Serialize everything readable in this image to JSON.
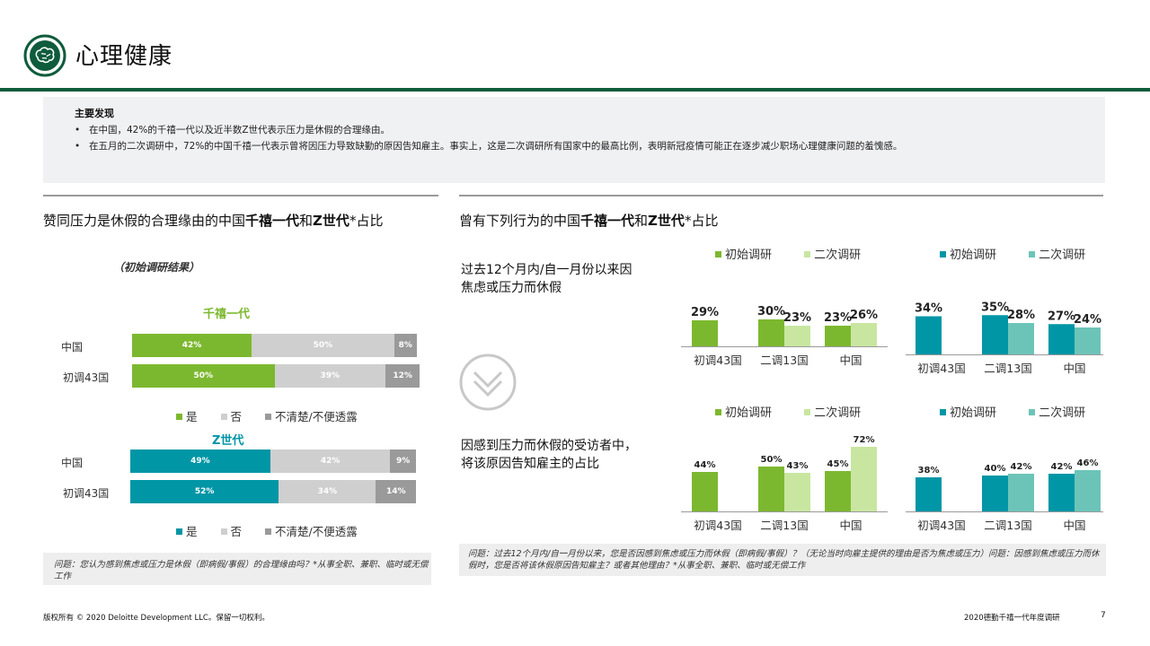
{
  "page": {
    "title": "心理健康",
    "footer_left": "版权所有 © 2020 Deloitte Development LLC。保留一切权利。",
    "footer_right": "2020德勤千禧一代年度调研",
    "page_number": "7"
  },
  "colors": {
    "green": "#7cb82f",
    "light_green": "#c8e6a0",
    "teal": "#0096a6",
    "light_teal": "#6cc4b8",
    "gray": "#cfcfcf",
    "dark_gray": "#9a9a9a",
    "header_green": "#0f5c3c"
  },
  "icons": {
    "logo": "brain-icon",
    "divider": "chevron-down-icon"
  },
  "findings": {
    "title": "主要发现",
    "items": [
      "在中国，42%的千禧一代以及近半数Z世代表示压力是休假的合理缘由。",
      "在五月的二次调研中，72%的中国千禧一代表示曾将因压力导致缺勤的原因告知雇主。事实上，这是二次调研所有国家中的最高比例，表明新冠疫情可能正在逐步减少职场心理健康问题的羞愧感。"
    ]
  },
  "left": {
    "title_a": "赞同压力是休假的合理缘由的中国",
    "title_b": "千禧一代",
    "title_c": "和",
    "title_d": "Z世代",
    "title_e": "*占比",
    "subtitle": "（初始调研结果）",
    "footnote": "问题：您认为感到焦虑或压力是休假（即病假/事假）的合理缘由吗？*从事全职、兼职、临时或无偿工作"
  },
  "right": {
    "title_a": "曾有下列行为的中国",
    "title_b": "千禧一代",
    "title_c": "和",
    "title_d": "Z世代",
    "title_e": "*占比",
    "row1_desc": [
      "过去12个月内/自一月份以来因",
      "焦虑或压力而休假"
    ],
    "row2_desc": [
      "因感到压力而休假的受访者中，",
      "将该原因告知雇主的占比"
    ],
    "footnote": "问题：过去12个月内/自一月份以来，您是否因感到焦虑或压力而休假（即病假/事假）？（无论当时向雇主提供的理由是否为焦虑或压力）问题：因感到焦虑或压力而休假时，您是否将该休假原因告知雇主？或者其他理由？*从事全职、兼职、临时或无偿工作"
  },
  "chart_data": [
    {
      "type": "bar",
      "orientation": "horizontal-stacked-100",
      "title": "千禧一代",
      "categories": [
        "中国",
        "初调43国"
      ],
      "series": [
        {
          "name": "是",
          "values": [
            42,
            50
          ]
        },
        {
          "name": "否",
          "values": [
            50,
            39
          ]
        },
        {
          "name": "不清楚/不便透露",
          "values": [
            8,
            12
          ]
        }
      ]
    },
    {
      "type": "bar",
      "orientation": "horizontal-stacked-100",
      "title": "Z世代",
      "categories": [
        "中国",
        "初调43国"
      ],
      "series": [
        {
          "name": "是",
          "values": [
            49,
            52
          ]
        },
        {
          "name": "否",
          "values": [
            42,
            34
          ]
        },
        {
          "name": "不清楚/不便透露",
          "values": [
            9,
            14
          ]
        }
      ]
    },
    {
      "type": "bar",
      "group": "千禧一代",
      "categories": [
        "初调43国",
        "二调13国",
        "中国"
      ],
      "series": [
        {
          "name": "初始调研",
          "values": [
            29,
            30,
            23
          ]
        },
        {
          "name": "二次调研",
          "values": [
            null,
            23,
            26
          ]
        }
      ],
      "ylim": [
        0,
        100
      ]
    },
    {
      "type": "bar",
      "group": "Z世代",
      "categories": [
        "初调43国",
        "二调13国",
        "中国"
      ],
      "series": [
        {
          "name": "初始调研",
          "values": [
            34,
            35,
            27
          ]
        },
        {
          "name": "二次调研",
          "values": [
            null,
            28,
            24
          ]
        }
      ],
      "ylim": [
        0,
        100
      ]
    },
    {
      "type": "bar",
      "group": "千禧一代",
      "categories": [
        "初调43国",
        "二调13国",
        "中国"
      ],
      "series": [
        {
          "name": "初始调研",
          "values": [
            44,
            50,
            45
          ]
        },
        {
          "name": "二次调研",
          "values": [
            null,
            43,
            72
          ]
        }
      ],
      "ylim": [
        0,
        100
      ]
    },
    {
      "type": "bar",
      "group": "Z世代",
      "categories": [
        "初调43国",
        "二调13国",
        "中国"
      ],
      "series": [
        {
          "name": "初始调研",
          "values": [
            38,
            40,
            42
          ]
        },
        {
          "name": "二次调研",
          "values": [
            null,
            42,
            46
          ]
        }
      ],
      "ylim": [
        0,
        100
      ]
    }
  ]
}
